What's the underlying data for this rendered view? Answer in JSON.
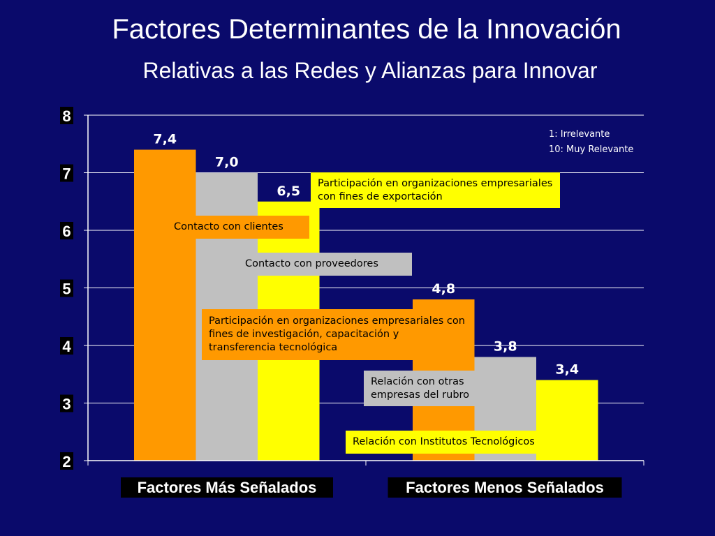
{
  "title": "Factores Determinantes de la Innovación",
  "subtitle": "Relativas a las Redes y Alianzas para Innovar",
  "legend_notes": [
    "1: Irrelevante",
    "10: Muy Relevante"
  ],
  "colors": {
    "background": "#0a0a6b",
    "orange": "#ff9900",
    "gray": "#c0c0c0",
    "yellow": "#ffff00"
  },
  "chart_data": {
    "type": "bar",
    "categories": [
      "Factores Más Señalados",
      "Factores Menos Señalados"
    ],
    "series": [
      {
        "values": [
          7.4,
          4.8
        ],
        "labels": [
          "7,4",
          "4,8"
        ],
        "color": "#ff9900"
      },
      {
        "values": [
          7.0,
          3.8
        ],
        "labels": [
          "7,0",
          "3,8"
        ],
        "color": "#c0c0c0"
      },
      {
        "values": [
          6.5,
          3.4
        ],
        "labels": [
          "6,5",
          "3,4"
        ],
        "color": "#ffff00"
      }
    ],
    "ylim": [
      2,
      8
    ],
    "yticks": [
      "2",
      "3",
      "4",
      "5",
      "6",
      "7",
      "8"
    ],
    "grid": true,
    "callouts": [
      {
        "text": "Participación en organizaciones empresariales con fines de exportación",
        "color": "#ffff00"
      },
      {
        "text": "Contacto con clientes",
        "color": "#ff9900"
      },
      {
        "text": "Contacto con proveedores",
        "color": "#c0c0c0"
      },
      {
        "text": "Participación en organizaciones empresariales con fines de investigación, capacitación y transferencia tecnológica",
        "color": "#ff9900"
      },
      {
        "text": "Relación con otras empresas del rubro",
        "color": "#c0c0c0"
      },
      {
        "text": "Relación con Institutos Tecnológicos",
        "color": "#ffff00"
      }
    ]
  }
}
